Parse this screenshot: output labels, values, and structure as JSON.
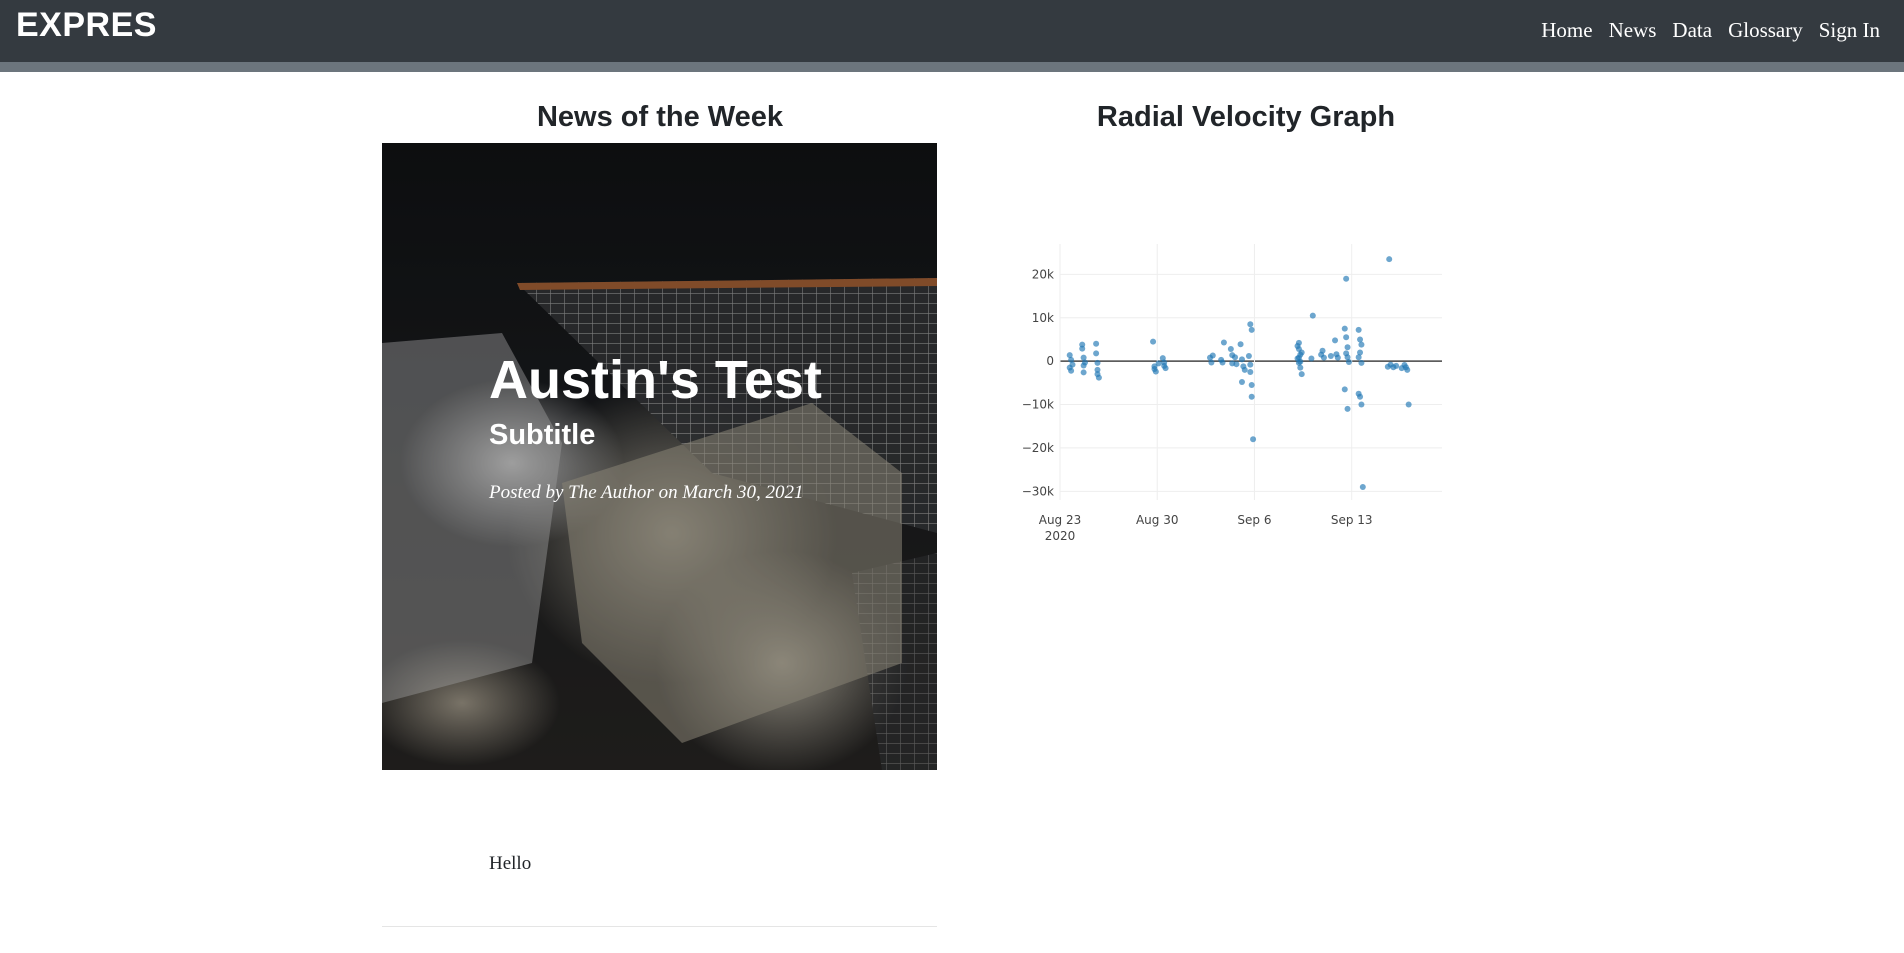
{
  "navbar": {
    "brand": "EXPRES",
    "links": [
      "Home",
      "News",
      "Data",
      "Glossary",
      "Sign In"
    ],
    "background": "#343a40",
    "band_color": "#6c757d"
  },
  "news": {
    "section_title": "News of the Week",
    "post": {
      "title": "Austin's Test",
      "subtitle": "Subtitle",
      "meta": "Posted by The Author on March 30, 2021",
      "body": "Hello"
    }
  },
  "graph": {
    "section_title": "Radial Velocity Graph"
  },
  "chart_data": {
    "type": "scatter",
    "title": "",
    "xlabel": "",
    "ylabel": "",
    "marker_color": "#1f77b4",
    "x_range": [
      "2020-08-23",
      "2020-09-19"
    ],
    "ylim": [
      -32000,
      27000
    ],
    "y_ticks": [
      20000,
      10000,
      0,
      -10000,
      -20000,
      -30000
    ],
    "y_tick_labels": [
      "20k",
      "10k",
      "0",
      "−10k",
      "−20k",
      "−30k"
    ],
    "x_ticks": [
      0,
      7,
      14,
      21
    ],
    "x_tick_labels": [
      "Aug 23",
      "Aug 30",
      "Sep 6",
      "Sep 13"
    ],
    "x_tick_sublabel": "2020",
    "series": [
      {
        "name": "radial velocity",
        "points": [
          [
            0.7,
            1400
          ],
          [
            0.7,
            -1500
          ],
          [
            0.8,
            300
          ],
          [
            0.8,
            -2200
          ],
          [
            0.9,
            -800
          ],
          [
            1.6,
            3800
          ],
          [
            1.6,
            2900
          ],
          [
            1.7,
            800
          ],
          [
            1.7,
            -1000
          ],
          [
            1.7,
            -2600
          ],
          [
            1.8,
            -300
          ],
          [
            2.6,
            4000
          ],
          [
            2.6,
            1800
          ],
          [
            2.7,
            -400
          ],
          [
            2.7,
            -2000
          ],
          [
            2.8,
            -3800
          ],
          [
            2.7,
            -3000
          ],
          [
            6.7,
            4500
          ],
          [
            6.8,
            -1200
          ],
          [
            6.8,
            -1800
          ],
          [
            6.9,
            -2400
          ],
          [
            7.1,
            -500
          ],
          [
            7.4,
            700
          ],
          [
            7.5,
            -300
          ],
          [
            7.5,
            -1100
          ],
          [
            7.6,
            -1600
          ],
          [
            10.8,
            800
          ],
          [
            10.9,
            -300
          ],
          [
            11.0,
            1300
          ],
          [
            11.6,
            300
          ],
          [
            11.7,
            -300
          ],
          [
            11.8,
            4300
          ],
          [
            12.3,
            2800
          ],
          [
            12.4,
            1400
          ],
          [
            12.4,
            -500
          ],
          [
            12.6,
            900
          ],
          [
            12.7,
            -700
          ],
          [
            13.0,
            3900
          ],
          [
            13.1,
            400
          ],
          [
            13.2,
            -1200
          ],
          [
            13.1,
            -4800
          ],
          [
            13.3,
            -2000
          ],
          [
            13.7,
            8500
          ],
          [
            13.8,
            7200
          ],
          [
            13.6,
            1200
          ],
          [
            13.7,
            -800
          ],
          [
            13.8,
            -5500
          ],
          [
            13.8,
            -8200
          ],
          [
            13.9,
            -18000
          ],
          [
            13.7,
            -2500
          ],
          [
            17.2,
            4200
          ],
          [
            17.2,
            2800
          ],
          [
            17.3,
            1500
          ],
          [
            17.1,
            600
          ],
          [
            17.2,
            -400
          ],
          [
            17.3,
            -1500
          ],
          [
            17.4,
            -3000
          ],
          [
            17.1,
            3500
          ],
          [
            17.2,
            800
          ],
          [
            17.3,
            -100
          ],
          [
            17.4,
            2000
          ],
          [
            18.2,
            10500
          ],
          [
            18.1,
            600
          ],
          [
            18.8,
            1500
          ],
          [
            18.9,
            2400
          ],
          [
            19.0,
            800
          ],
          [
            19.5,
            1200
          ],
          [
            19.8,
            4800
          ],
          [
            19.9,
            1600
          ],
          [
            20.0,
            800
          ],
          [
            20.6,
            19000
          ],
          [
            20.5,
            7500
          ],
          [
            20.6,
            5500
          ],
          [
            20.7,
            3200
          ],
          [
            20.6,
            1800
          ],
          [
            20.7,
            900
          ],
          [
            20.8,
            -200
          ],
          [
            20.5,
            -6500
          ],
          [
            20.7,
            -11000
          ],
          [
            21.5,
            7200
          ],
          [
            21.6,
            5000
          ],
          [
            21.7,
            3800
          ],
          [
            21.6,
            2000
          ],
          [
            21.5,
            900
          ],
          [
            21.7,
            -400
          ],
          [
            21.5,
            -7500
          ],
          [
            21.6,
            -8200
          ],
          [
            21.7,
            -10000
          ],
          [
            21.8,
            -29000
          ],
          [
            23.7,
            23500
          ],
          [
            23.6,
            -1300
          ],
          [
            23.8,
            -800
          ],
          [
            24.0,
            -1400
          ],
          [
            24.2,
            -1100
          ],
          [
            24.6,
            -1600
          ],
          [
            24.8,
            -900
          ],
          [
            25.0,
            -2000
          ],
          [
            25.1,
            -10000
          ],
          [
            24.9,
            -1400
          ]
        ]
      }
    ]
  }
}
